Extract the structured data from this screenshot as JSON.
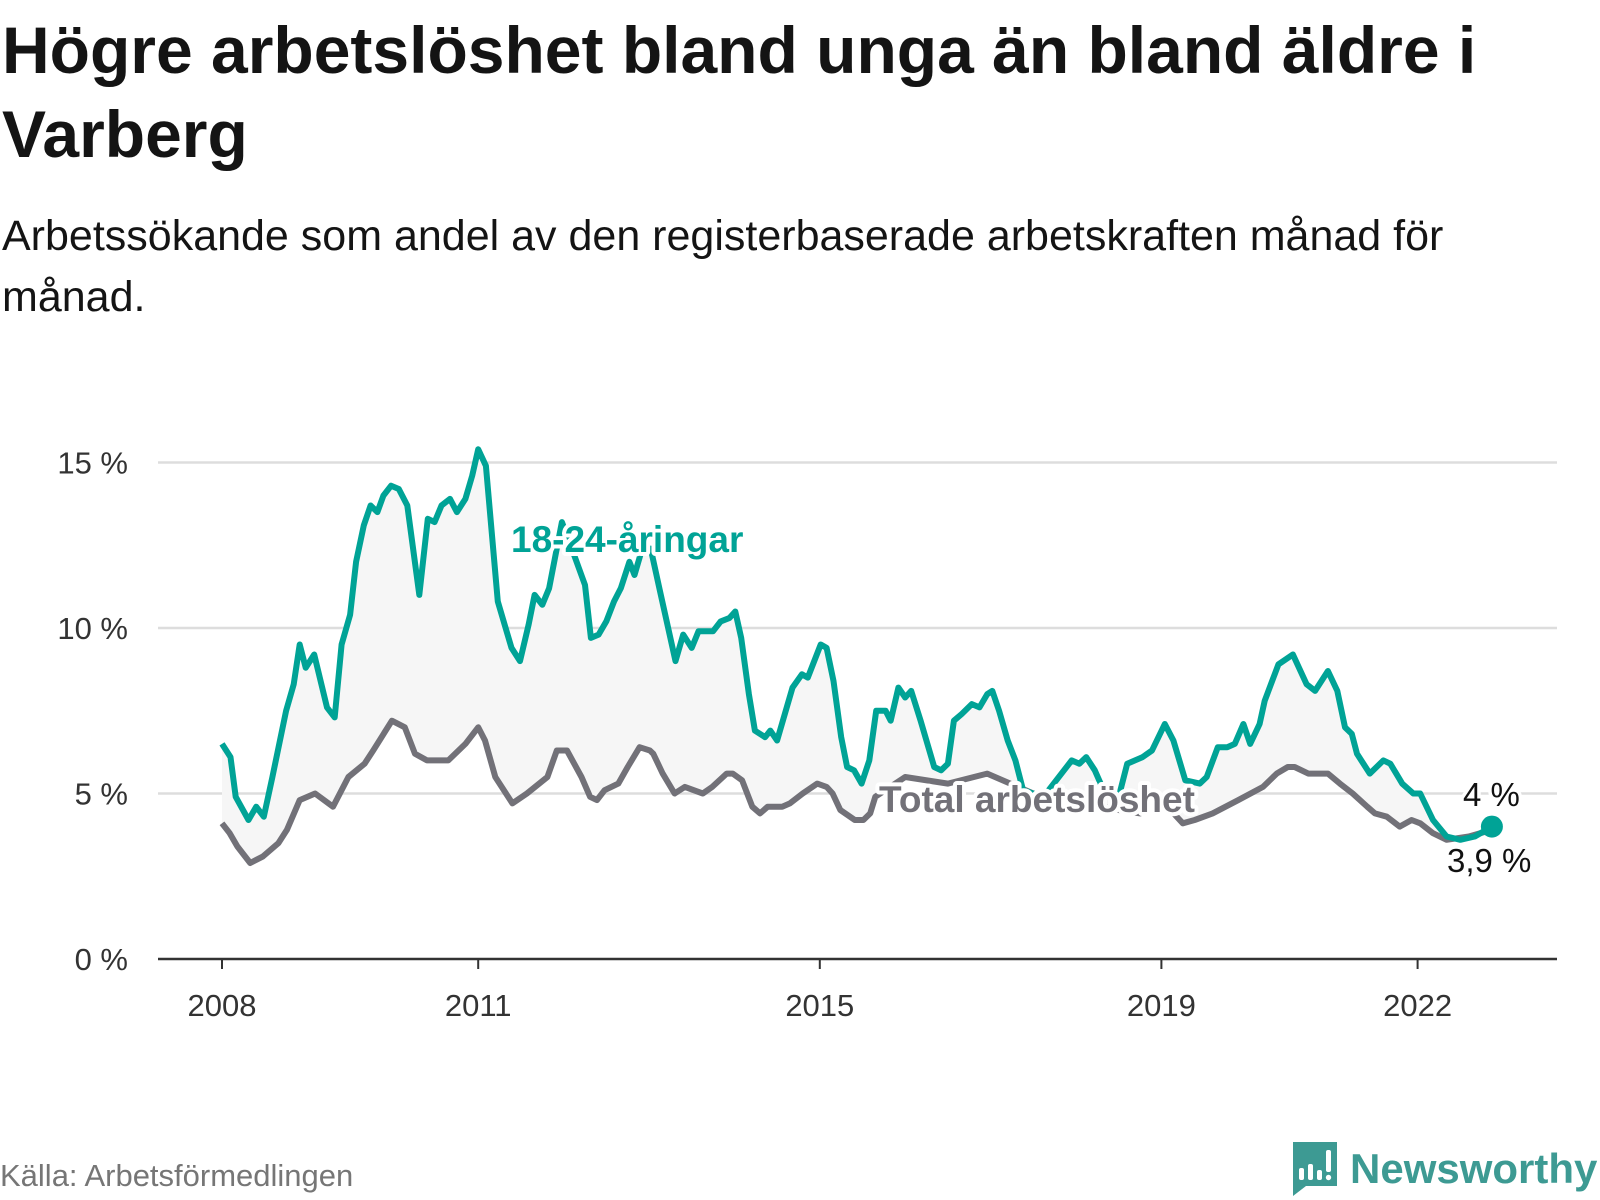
{
  "title": "Högre arbetslöshet bland unga än bland äldre i Varberg",
  "subtitle": "Arbetssökande som andel av den registerbaserade arbetskraften månad för månad.",
  "source": "Källa: Arbetsförmedlingen",
  "logo": {
    "text": "Newsworthy",
    "icon": "newsworthy-bar-chart-icon"
  },
  "colors": {
    "youth": "#00a396",
    "total": "#727178",
    "fill": "#f6f6f6",
    "grid": "#dddddd",
    "axis": "#333333",
    "brand": "#3d9a93"
  },
  "chart_data": {
    "type": "line",
    "title": "Högre arbetslöshet bland unga än bland äldre i Varberg",
    "xlabel": "",
    "ylabel": "",
    "xlim": [
      2008,
      2023.6
    ],
    "ylim": [
      0,
      15.5
    ],
    "y_ticks": [
      {
        "v": 0,
        "label": "0 %"
      },
      {
        "v": 5,
        "label": "5 %"
      },
      {
        "v": 10,
        "label": "10 %"
      },
      {
        "v": 15,
        "label": "15 %"
      }
    ],
    "x_ticks": [
      {
        "v": 2008,
        "label": "2008"
      },
      {
        "v": 2011,
        "label": "2011"
      },
      {
        "v": 2015,
        "label": "2015"
      },
      {
        "v": 2019,
        "label": "2019"
      },
      {
        "v": 2022,
        "label": "2022"
      }
    ],
    "grid": true,
    "series": [
      {
        "name": "18-24-åringar",
        "label": "18-24-åringar",
        "end_label": "4 %",
        "end_value": 4.0,
        "points": [
          [
            2008.0,
            6.5
          ],
          [
            2008.1,
            6.1
          ],
          [
            2008.16,
            4.9
          ],
          [
            2008.31,
            4.2
          ],
          [
            2008.4,
            4.6
          ],
          [
            2008.49,
            4.3
          ],
          [
            2008.59,
            5.5
          ],
          [
            2008.75,
            7.5
          ],
          [
            2008.84,
            8.3
          ],
          [
            2008.91,
            9.5
          ],
          [
            2008.98,
            8.8
          ],
          [
            2009.08,
            9.2
          ],
          [
            2009.23,
            7.6
          ],
          [
            2009.32,
            7.3
          ],
          [
            2009.4,
            9.5
          ],
          [
            2009.5,
            10.4
          ],
          [
            2009.57,
            12.0
          ],
          [
            2009.66,
            13.1
          ],
          [
            2009.74,
            13.7
          ],
          [
            2009.82,
            13.5
          ],
          [
            2009.89,
            14.0
          ],
          [
            2009.98,
            14.3
          ],
          [
            2010.07,
            14.2
          ],
          [
            2010.17,
            13.7
          ],
          [
            2010.31,
            11.0
          ],
          [
            2010.41,
            13.3
          ],
          [
            2010.49,
            13.2
          ],
          [
            2010.57,
            13.7
          ],
          [
            2010.67,
            13.9
          ],
          [
            2010.75,
            13.5
          ],
          [
            2010.85,
            13.9
          ],
          [
            2010.93,
            14.6
          ],
          [
            2011.0,
            15.4
          ],
          [
            2011.09,
            14.9
          ],
          [
            2011.23,
            10.8
          ],
          [
            2011.39,
            9.4
          ],
          [
            2011.49,
            9.0
          ],
          [
            2011.59,
            10.1
          ],
          [
            2011.66,
            11.0
          ],
          [
            2011.75,
            10.7
          ],
          [
            2011.83,
            11.2
          ],
          [
            2011.98,
            13.2
          ],
          [
            2012.11,
            12.3
          ],
          [
            2012.25,
            11.3
          ],
          [
            2012.32,
            9.7
          ],
          [
            2012.41,
            9.8
          ],
          [
            2012.5,
            10.2
          ],
          [
            2012.59,
            10.8
          ],
          [
            2012.67,
            11.2
          ],
          [
            2012.77,
            12.0
          ],
          [
            2012.83,
            11.6
          ],
          [
            2012.92,
            12.4
          ],
          [
            2013.02,
            12.4
          ],
          [
            2013.13,
            11.1
          ],
          [
            2013.31,
            9.0
          ],
          [
            2013.4,
            9.8
          ],
          [
            2013.5,
            9.4
          ],
          [
            2013.58,
            9.9
          ],
          [
            2013.75,
            9.9
          ],
          [
            2013.84,
            10.2
          ],
          [
            2013.94,
            10.3
          ],
          [
            2014.01,
            10.5
          ],
          [
            2014.08,
            9.7
          ],
          [
            2014.17,
            8.0
          ],
          [
            2014.24,
            6.9
          ],
          [
            2014.36,
            6.7
          ],
          [
            2014.42,
            6.9
          ],
          [
            2014.5,
            6.6
          ],
          [
            2014.68,
            8.2
          ],
          [
            2014.79,
            8.6
          ],
          [
            2014.86,
            8.5
          ],
          [
            2015.01,
            9.5
          ],
          [
            2015.08,
            9.4
          ],
          [
            2015.16,
            8.4
          ],
          [
            2015.25,
            6.7
          ],
          [
            2015.32,
            5.8
          ],
          [
            2015.4,
            5.7
          ],
          [
            2015.49,
            5.3
          ],
          [
            2015.58,
            6.0
          ],
          [
            2015.66,
            7.5
          ],
          [
            2015.77,
            7.5
          ],
          [
            2015.83,
            7.2
          ],
          [
            2015.92,
            8.2
          ],
          [
            2016.0,
            7.9
          ],
          [
            2016.07,
            8.1
          ],
          [
            2016.18,
            7.2
          ],
          [
            2016.34,
            5.8
          ],
          [
            2016.42,
            5.7
          ],
          [
            2016.5,
            5.9
          ],
          [
            2016.57,
            7.2
          ],
          [
            2016.66,
            7.4
          ],
          [
            2016.78,
            7.7
          ],
          [
            2016.87,
            7.6
          ],
          [
            2016.96,
            8.0
          ],
          [
            2017.02,
            8.1
          ],
          [
            2017.1,
            7.5
          ],
          [
            2017.2,
            6.6
          ],
          [
            2017.29,
            6.0
          ],
          [
            2017.38,
            5.1
          ],
          [
            2017.62,
            4.9
          ],
          [
            2017.86,
            5.7
          ],
          [
            2017.95,
            6.0
          ],
          [
            2018.04,
            5.9
          ],
          [
            2018.12,
            6.1
          ],
          [
            2018.22,
            5.7
          ],
          [
            2018.34,
            5.0
          ],
          [
            2018.51,
            5.0
          ],
          [
            2018.6,
            5.9
          ],
          [
            2018.78,
            6.1
          ],
          [
            2018.89,
            6.3
          ],
          [
            2019.04,
            7.1
          ],
          [
            2019.14,
            6.6
          ],
          [
            2019.28,
            5.4
          ],
          [
            2019.45,
            5.3
          ],
          [
            2019.53,
            5.5
          ],
          [
            2019.66,
            6.4
          ],
          [
            2019.77,
            6.4
          ],
          [
            2019.86,
            6.5
          ],
          [
            2019.96,
            7.1
          ],
          [
            2020.04,
            6.5
          ],
          [
            2020.15,
            7.1
          ],
          [
            2020.21,
            7.8
          ],
          [
            2020.37,
            8.9
          ],
          [
            2020.54,
            9.2
          ],
          [
            2020.7,
            8.3
          ],
          [
            2020.8,
            8.1
          ],
          [
            2020.95,
            8.7
          ],
          [
            2021.06,
            8.1
          ],
          [
            2021.15,
            7.0
          ],
          [
            2021.23,
            6.8
          ],
          [
            2021.29,
            6.2
          ],
          [
            2021.44,
            5.6
          ],
          [
            2021.6,
            6.0
          ],
          [
            2021.68,
            5.9
          ],
          [
            2021.82,
            5.3
          ],
          [
            2021.95,
            5.0
          ],
          [
            2022.03,
            5.0
          ],
          [
            2022.18,
            4.2
          ],
          [
            2022.34,
            3.7
          ],
          [
            2022.5,
            3.6
          ],
          [
            2022.67,
            3.7
          ],
          [
            2022.87,
            4.0
          ]
        ]
      },
      {
        "name": "Total arbetslöshet",
        "label": "Total arbetslöshet",
        "end_label": "3,9 %",
        "end_value": 3.9,
        "points": [
          [
            2008.0,
            4.1
          ],
          [
            2008.09,
            3.8
          ],
          [
            2008.18,
            3.4
          ],
          [
            2008.33,
            2.9
          ],
          [
            2008.48,
            3.1
          ],
          [
            2008.66,
            3.5
          ],
          [
            2008.76,
            3.9
          ],
          [
            2008.91,
            4.8
          ],
          [
            2009.09,
            5.0
          ],
          [
            2009.3,
            4.6
          ],
          [
            2009.48,
            5.5
          ],
          [
            2009.67,
            5.9
          ],
          [
            2009.77,
            6.3
          ],
          [
            2009.99,
            7.2
          ],
          [
            2010.14,
            7.0
          ],
          [
            2010.26,
            6.2
          ],
          [
            2010.4,
            6.0
          ],
          [
            2010.65,
            6.0
          ],
          [
            2010.85,
            6.5
          ],
          [
            2011.0,
            7.0
          ],
          [
            2011.08,
            6.6
          ],
          [
            2011.2,
            5.5
          ],
          [
            2011.4,
            4.7
          ],
          [
            2011.57,
            5.0
          ],
          [
            2011.81,
            5.5
          ],
          [
            2011.92,
            6.3
          ],
          [
            2012.04,
            6.3
          ],
          [
            2012.21,
            5.5
          ],
          [
            2012.31,
            4.9
          ],
          [
            2012.39,
            4.8
          ],
          [
            2012.48,
            5.1
          ],
          [
            2012.64,
            5.3
          ],
          [
            2012.75,
            5.8
          ],
          [
            2012.89,
            6.4
          ],
          [
            2013.01,
            6.3
          ],
          [
            2013.05,
            6.2
          ],
          [
            2013.16,
            5.6
          ],
          [
            2013.3,
            5.0
          ],
          [
            2013.42,
            5.2
          ],
          [
            2013.63,
            5.0
          ],
          [
            2013.74,
            5.2
          ],
          [
            2013.91,
            5.6
          ],
          [
            2013.98,
            5.6
          ],
          [
            2014.09,
            5.4
          ],
          [
            2014.21,
            4.6
          ],
          [
            2014.3,
            4.4
          ],
          [
            2014.39,
            4.6
          ],
          [
            2014.56,
            4.6
          ],
          [
            2014.65,
            4.7
          ],
          [
            2014.8,
            5.0
          ],
          [
            2014.97,
            5.3
          ],
          [
            2015.08,
            5.2
          ],
          [
            2015.15,
            5.0
          ],
          [
            2015.24,
            4.5
          ],
          [
            2015.41,
            4.2
          ],
          [
            2015.51,
            4.2
          ],
          [
            2015.59,
            4.4
          ],
          [
            2015.65,
            4.9
          ],
          [
            2016.0,
            5.5
          ],
          [
            2016.5,
            5.3
          ],
          [
            2016.96,
            5.6
          ],
          [
            2017.5,
            5.0
          ],
          [
            2018.0,
            4.8
          ],
          [
            2018.5,
            4.5
          ],
          [
            2018.75,
            4.4
          ],
          [
            2019.0,
            4.8
          ],
          [
            2019.25,
            4.1
          ],
          [
            2019.39,
            4.2
          ],
          [
            2019.6,
            4.4
          ],
          [
            2019.9,
            4.8
          ],
          [
            2020.19,
            5.2
          ],
          [
            2020.35,
            5.6
          ],
          [
            2020.48,
            5.8
          ],
          [
            2020.56,
            5.8
          ],
          [
            2020.72,
            5.6
          ],
          [
            2020.86,
            5.6
          ],
          [
            2020.95,
            5.6
          ],
          [
            2021.09,
            5.3
          ],
          [
            2021.24,
            5.0
          ],
          [
            2021.41,
            4.6
          ],
          [
            2021.5,
            4.4
          ],
          [
            2021.64,
            4.3
          ],
          [
            2021.79,
            4.0
          ],
          [
            2021.93,
            4.2
          ],
          [
            2022.03,
            4.1
          ],
          [
            2022.18,
            3.8
          ],
          [
            2022.34,
            3.6
          ],
          [
            2022.6,
            3.7
          ],
          [
            2022.87,
            3.9
          ]
        ]
      }
    ]
  }
}
